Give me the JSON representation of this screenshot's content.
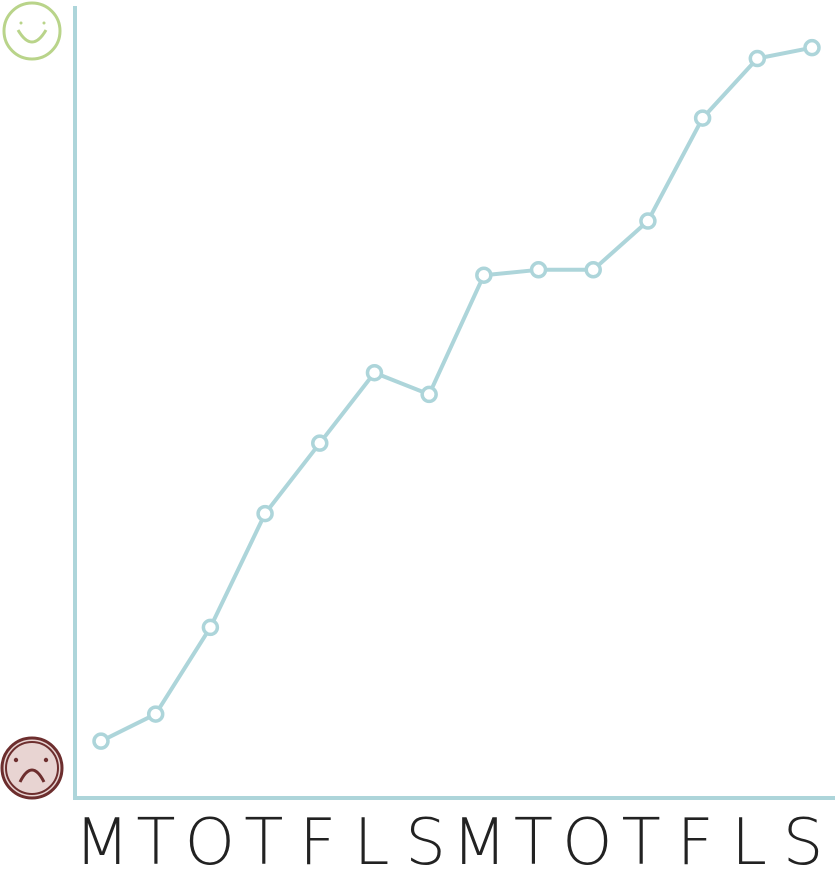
{
  "chart_data": {
    "type": "line",
    "categories": [
      "M",
      "T",
      "O",
      "T",
      "F",
      "L",
      "S",
      "M",
      "T",
      "O",
      "T",
      "F",
      "L",
      "S"
    ],
    "series": [
      {
        "values": [
          0.2,
          0.7,
          2.3,
          4.4,
          5.7,
          7.0,
          6.6,
          8.8,
          8.9,
          8.9,
          9.8,
          11.7,
          12.8,
          13.0
        ]
      }
    ],
    "title": "",
    "xlabel": "",
    "ylabel": "",
    "ylim": [
      0,
      13.4
    ],
    "y_axis_markers": {
      "top": "happy-face-icon",
      "bottom": "sad-face-icon"
    },
    "grid": false,
    "legend": "none"
  },
  "colors": {
    "line": "#add5da",
    "axis": "#add5da",
    "happy": "#b9d48a",
    "sad": "#6d2e2e",
    "sad_fill": "#e8d4d2",
    "label": "#222222"
  }
}
